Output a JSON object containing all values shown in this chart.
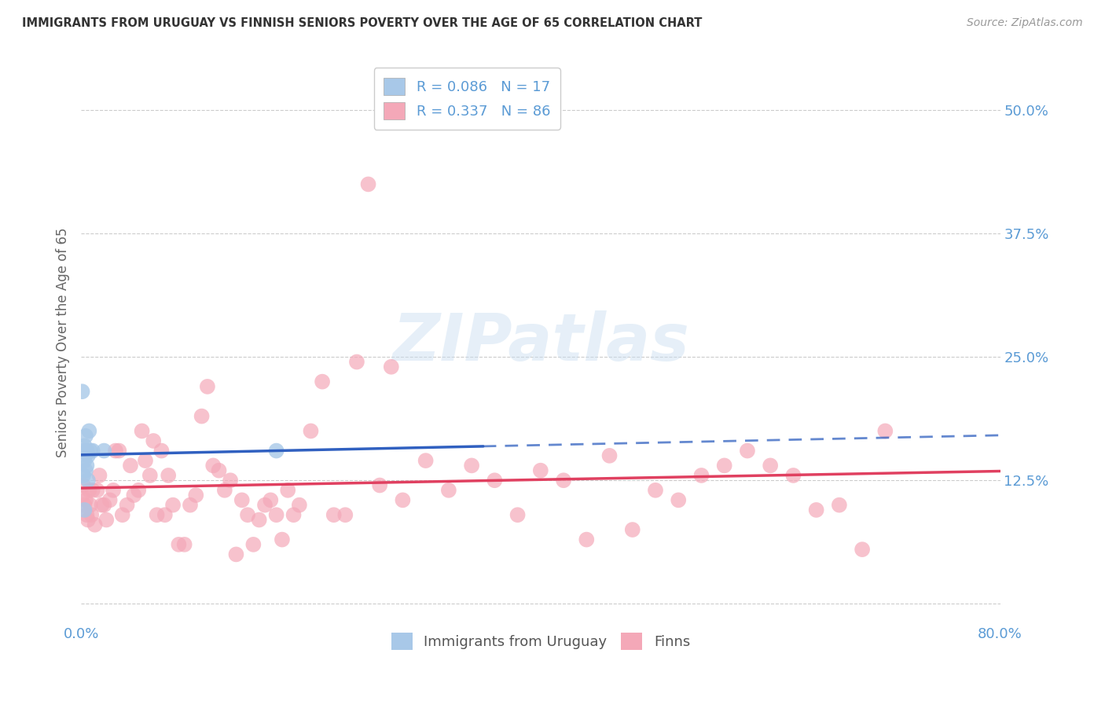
{
  "title": "IMMIGRANTS FROM URUGUAY VS FINNISH SENIORS POVERTY OVER THE AGE OF 65 CORRELATION CHART",
  "source": "Source: ZipAtlas.com",
  "ylabel": "Seniors Poverty Over the Age of 65",
  "xlim": [
    0.0,
    0.8
  ],
  "ylim": [
    -0.02,
    0.55
  ],
  "yticks": [
    0.0,
    0.125,
    0.25,
    0.375,
    0.5
  ],
  "ytick_labels": [
    "",
    "12.5%",
    "25.0%",
    "37.5%",
    "50.0%"
  ],
  "xticks": [
    0.0,
    0.1,
    0.2,
    0.3,
    0.4,
    0.5,
    0.6,
    0.7,
    0.8
  ],
  "xtick_labels": [
    "0.0%",
    "",
    "",
    "",
    "",
    "",
    "",
    "",
    "80.0%"
  ],
  "legend_label1": "R = 0.086   N = 17",
  "legend_label2": "R = 0.337   N = 86",
  "legend_bottom_label1": "Immigrants from Uruguay",
  "legend_bottom_label2": "Finns",
  "color_uruguay": "#a8c8e8",
  "color_finns": "#f4a8b8",
  "color_line_uruguay": "#3060c0",
  "color_line_finns": "#e04060",
  "watermark_text": "ZIPatlas",
  "background_color": "#ffffff",
  "grid_color": "#cccccc",
  "axis_label_color": "#5b9bd5",
  "title_color": "#333333",
  "uruguay_x": [
    0.002,
    0.003,
    0.004,
    0.005,
    0.006,
    0.003,
    0.007,
    0.002,
    0.004,
    0.005,
    0.006,
    0.008,
    0.01,
    0.003,
    0.02,
    0.17,
    0.001
  ],
  "uruguay_y": [
    0.155,
    0.145,
    0.135,
    0.14,
    0.15,
    0.16,
    0.175,
    0.13,
    0.17,
    0.155,
    0.125,
    0.155,
    0.155,
    0.095,
    0.155,
    0.155,
    0.215
  ],
  "finns_x": [
    0.001,
    0.002,
    0.003,
    0.004,
    0.005,
    0.006,
    0.007,
    0.008,
    0.009,
    0.01,
    0.012,
    0.014,
    0.016,
    0.018,
    0.02,
    0.022,
    0.025,
    0.028,
    0.03,
    0.033,
    0.036,
    0.04,
    0.043,
    0.046,
    0.05,
    0.053,
    0.056,
    0.06,
    0.063,
    0.066,
    0.07,
    0.073,
    0.076,
    0.08,
    0.085,
    0.09,
    0.095,
    0.1,
    0.105,
    0.11,
    0.115,
    0.12,
    0.125,
    0.13,
    0.135,
    0.14,
    0.145,
    0.15,
    0.155,
    0.16,
    0.165,
    0.17,
    0.175,
    0.18,
    0.185,
    0.19,
    0.2,
    0.21,
    0.22,
    0.23,
    0.24,
    0.25,
    0.26,
    0.27,
    0.28,
    0.3,
    0.32,
    0.34,
    0.36,
    0.38,
    0.4,
    0.42,
    0.44,
    0.46,
    0.48,
    0.5,
    0.52,
    0.54,
    0.56,
    0.58,
    0.6,
    0.62,
    0.64,
    0.66,
    0.68,
    0.7
  ],
  "finns_y": [
    0.11,
    0.12,
    0.1,
    0.105,
    0.09,
    0.085,
    0.115,
    0.1,
    0.09,
    0.115,
    0.08,
    0.115,
    0.13,
    0.1,
    0.1,
    0.085,
    0.105,
    0.115,
    0.155,
    0.155,
    0.09,
    0.1,
    0.14,
    0.11,
    0.115,
    0.175,
    0.145,
    0.13,
    0.165,
    0.09,
    0.155,
    0.09,
    0.13,
    0.1,
    0.06,
    0.06,
    0.1,
    0.11,
    0.19,
    0.22,
    0.14,
    0.135,
    0.115,
    0.125,
    0.05,
    0.105,
    0.09,
    0.06,
    0.085,
    0.1,
    0.105,
    0.09,
    0.065,
    0.115,
    0.09,
    0.1,
    0.175,
    0.225,
    0.09,
    0.09,
    0.245,
    0.425,
    0.12,
    0.24,
    0.105,
    0.145,
    0.115,
    0.14,
    0.125,
    0.09,
    0.135,
    0.125,
    0.065,
    0.15,
    0.075,
    0.115,
    0.105,
    0.13,
    0.14,
    0.155,
    0.14,
    0.13,
    0.095,
    0.1,
    0.055,
    0.175
  ]
}
